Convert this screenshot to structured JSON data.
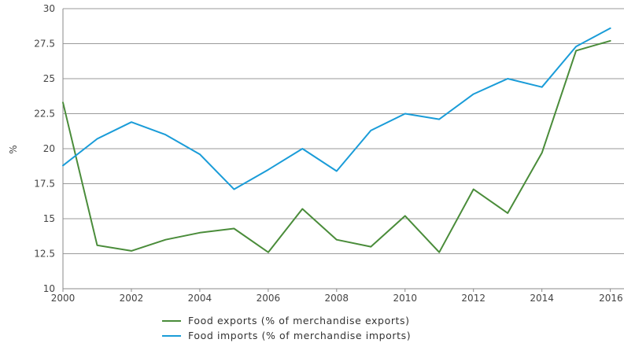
{
  "chart_data": {
    "type": "line",
    "title": "",
    "xlabel": "",
    "ylabel": "%",
    "x": [
      2000,
      2001,
      2002,
      2003,
      2004,
      2005,
      2006,
      2007,
      2008,
      2009,
      2010,
      2011,
      2012,
      2013,
      2014,
      2015,
      2016
    ],
    "xlim": [
      2000,
      2016.4
    ],
    "ylim": [
      10,
      30
    ],
    "x_ticks": [
      "2000",
      "2002",
      "2004",
      "2006",
      "2008",
      "2010",
      "2012",
      "2014",
      "2016"
    ],
    "y_ticks": [
      "10",
      "12.5",
      "15",
      "17.5",
      "20",
      "22.5",
      "25",
      "27.5",
      "30"
    ],
    "grid": "horizontal",
    "legend_position": "bottom",
    "series": [
      {
        "name": "Food exports (% of merchandise exports)",
        "color": "#4a8c3a",
        "values": [
          23.3,
          13.1,
          12.7,
          13.5,
          14.0,
          14.3,
          12.6,
          15.7,
          13.5,
          13.0,
          15.2,
          12.6,
          17.1,
          15.4,
          19.7,
          27.0,
          27.7
        ]
      },
      {
        "name": "Food imports (% of merchandise imports)",
        "color": "#1a9cd8",
        "values": [
          18.8,
          20.7,
          21.9,
          21.0,
          19.6,
          17.1,
          18.5,
          20.0,
          18.4,
          21.3,
          22.5,
          22.1,
          23.9,
          25.0,
          24.4,
          27.3,
          28.6
        ]
      }
    ]
  }
}
